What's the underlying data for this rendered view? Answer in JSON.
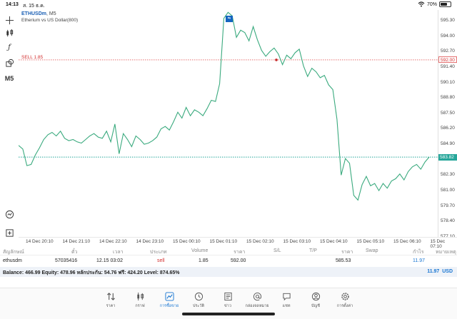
{
  "status": {
    "time": "14:13",
    "date": "ส. 15 ธ.ค.",
    "battery": "70%",
    "battery_level": 0.7
  },
  "chart": {
    "symbol": "ETHUSDm",
    "timeframe": "M5",
    "description": "Etherium vs US Dollar(800)",
    "one_click": "⇆",
    "sell_label": "SELL 1.85",
    "sell_price_tag": "592.00",
    "bid_price_tag": "583.82",
    "price_ticks": [
      "595.30",
      "594.00",
      "592.70",
      "592.00",
      "591.40",
      "590.10",
      "588.80",
      "587.50",
      "586.20",
      "584.90",
      "583.82",
      "582.30",
      "581.00",
      "579.70",
      "578.40",
      "577.10"
    ],
    "time_ticks": [
      "14 Dec 20:10",
      "14 Dec 21:10",
      "14 Dec 22:10",
      "14 Dec 23:10",
      "15 Dec 00:10",
      "15 Dec 01:10",
      "15 Dec 02:10",
      "15 Dec 03:10",
      "15 Dec 04:10",
      "15 Dec 05:10",
      "15 Dec 06:10",
      "15 Dec 07:10"
    ],
    "line_color": "#3aaa7e",
    "sell_color": "#e57373",
    "bid_color": "#26a69a"
  },
  "chart_data": {
    "type": "line",
    "title": "ETHUSDm, M5",
    "xlabel": "",
    "ylabel": "",
    "ylim": [
      577.1,
      596.2
    ],
    "series": [
      {
        "values": [
          584.8,
          584.5,
          583.1,
          583.2,
          584.0,
          584.6,
          585.3,
          585.7,
          585.9,
          585.6,
          586.0,
          585.4,
          585.2,
          585.3,
          585.1,
          585.0,
          585.3,
          585.6,
          585.8,
          585.5,
          585.4,
          586.0,
          585.1,
          586.6,
          584.1,
          585.8,
          585.3,
          584.7,
          585.6,
          585.3,
          584.9,
          585.0,
          585.2,
          585.5,
          586.2,
          586.4,
          586.1,
          586.8,
          587.6,
          587.1,
          588.0,
          587.3,
          587.8,
          587.6,
          587.3,
          587.9,
          588.6,
          588.5,
          590.0,
          595.5,
          596.0,
          595.7,
          593.9,
          594.5,
          594.3,
          593.6,
          594.8,
          593.7,
          592.8,
          592.3,
          592.7,
          593.0,
          592.5,
          591.6,
          592.4,
          592.1,
          592.6,
          592.9,
          591.5,
          590.6,
          591.3,
          591.0,
          590.5,
          590.7,
          589.9,
          589.5,
          587.0,
          582.3,
          583.7,
          583.3,
          580.6,
          580.2,
          581.5,
          582.2,
          581.4,
          581.6,
          581.0,
          581.6,
          581.2,
          581.8,
          582.0,
          582.4,
          581.9,
          582.6,
          583.0,
          583.2,
          582.8,
          583.4,
          583.82
        ]
      }
    ]
  },
  "table": {
    "headers": [
      "สัญลักษณ์",
      "ตั๋ว",
      "เวลา",
      "ประเภท",
      "Volume",
      "ราคา",
      "S/L",
      "T/P",
      "ราคา",
      "Swap",
      "กำไร",
      "หมายเหตุ"
    ],
    "row": {
      "symbol": "ethusdm",
      "ticket": "57035416",
      "time": "12.15 03:02",
      "type": "sell",
      "volume": "1.85",
      "open_price": "592.00",
      "current_price": "585.53",
      "profit": "11.97"
    }
  },
  "balance": {
    "summary": "Balance: 466.99 Equity: 478.96 หลักประกัน: 54.76 ฟรี: 424.20 Level: 874.65%",
    "total": "11.97",
    "currency": "USD"
  },
  "nav": [
    {
      "label": "ราคา",
      "icon": "quotes-icon"
    },
    {
      "label": "กราฟ",
      "icon": "chart-icon"
    },
    {
      "label": "การซื้อขาย",
      "icon": "trade-icon",
      "active": true
    },
    {
      "label": "ประวัติ",
      "icon": "history-icon"
    },
    {
      "label": "ข่าว",
      "icon": "news-icon"
    },
    {
      "label": "กล่องจดหมาย",
      "icon": "mailbox-icon"
    },
    {
      "label": "แชท",
      "icon": "chat-icon"
    },
    {
      "label": "บัญชี",
      "icon": "account-icon"
    },
    {
      "label": "การตั้งค่า",
      "icon": "settings-icon"
    }
  ]
}
